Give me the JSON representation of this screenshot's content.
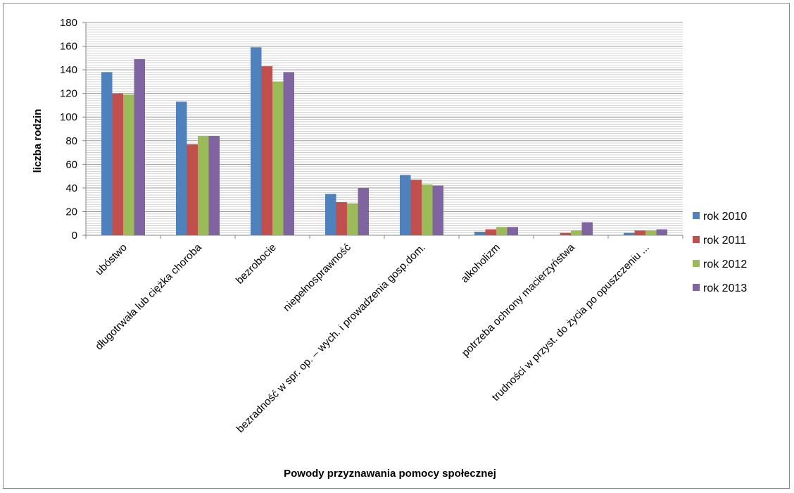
{
  "chart_data": {
    "type": "bar",
    "title": "",
    "xlabel": "Powody przyznawania pomocy społecznej",
    "ylabel": "liczba rodzin",
    "ylim": [
      0,
      180
    ],
    "ytick_step": 20,
    "ytick_labels": [
      "0",
      "20",
      "40",
      "60",
      "80",
      "100",
      "120",
      "140",
      "160",
      "180"
    ],
    "grid": true,
    "legend_position": "right",
    "categories": [
      "ubóstwo",
      "długotrwała lub ciężka choroba",
      "bezrobocie",
      "niepełnosprawność",
      "bezradność w spr. op. – wych. i prowadzenia gosp.dom.",
      "alkoholizm",
      "potrzeba ochrony macierzyństwa",
      "trudności w przyst. do życia po opuszczeniu ..."
    ],
    "series": [
      {
        "name": "rok 2010",
        "color": "#4f81bd",
        "values": [
          138,
          113,
          159,
          35,
          51,
          3,
          0,
          2
        ]
      },
      {
        "name": "rok 2011",
        "color": "#c0504d",
        "values": [
          120,
          77,
          143,
          28,
          47,
          5,
          2,
          4
        ]
      },
      {
        "name": "rok 2012",
        "color": "#9bbb59",
        "values": [
          119,
          84,
          130,
          27,
          43,
          7,
          4,
          4
        ]
      },
      {
        "name": "rok 2013",
        "color": "#8064a2",
        "values": [
          149,
          84,
          138,
          40,
          42,
          7,
          11,
          5
        ]
      }
    ]
  }
}
